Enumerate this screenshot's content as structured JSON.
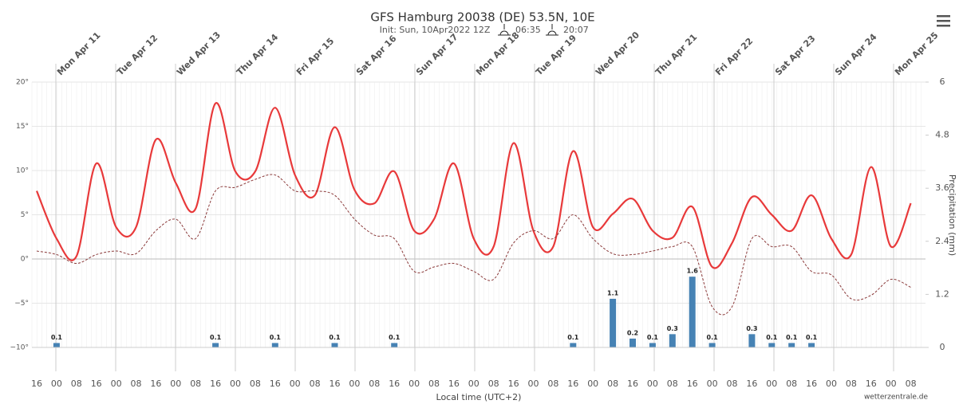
{
  "chart_data": {
    "type": "line",
    "title": "GFS Hamburg 20038 (DE) 53.5N, 10E",
    "subtitle": "Init: Sun, 10Apr2022 12Z",
    "sunrise": "06:35",
    "sunset": "20:07",
    "x_label": "Local time (UTC+2)",
    "y2_label": "Precipitation (mm)",
    "credit": "wetterzentrale.de",
    "day_labels": [
      "Mon Apr 11",
      "Tue Apr 12",
      "Wed Apr 13",
      "Thu Apr 14",
      "Fri Apr 15",
      "Sat Apr 16",
      "Sun Apr 17",
      "Mon Apr 18",
      "Tue Apr 19",
      "Wed Apr 20",
      "Thu Apr 21",
      "Fri Apr 22",
      "Sat Apr 23",
      "Sun Apr 24",
      "Mon Apr 25"
    ],
    "categories": [
      "16",
      "00",
      "08",
      "16",
      "00",
      "08",
      "16",
      "00",
      "08",
      "16",
      "00",
      "08",
      "16",
      "00",
      "08",
      "16",
      "00",
      "08",
      "16",
      "00",
      "08",
      "16",
      "00",
      "08",
      "16",
      "00",
      "08",
      "16",
      "00",
      "08",
      "16",
      "00",
      "08",
      "16",
      "00",
      "08",
      "16",
      "00",
      "08",
      "16",
      "00",
      "08",
      "16",
      "00",
      "08"
    ],
    "ylim": [
      -10,
      20
    ],
    "yticks": [
      {
        "value": -10,
        "label": "−10°"
      },
      {
        "value": -5,
        "label": "−5°"
      },
      {
        "value": 0,
        "label": "0°"
      },
      {
        "value": 5,
        "label": "5°"
      },
      {
        "value": 10,
        "label": "10°"
      },
      {
        "value": 15,
        "label": "15°"
      },
      {
        "value": 20,
        "label": "20°"
      }
    ],
    "y2lim": [
      0,
      6
    ],
    "y2ticks": [
      0,
      1.2,
      2.4,
      3.6,
      4.8,
      6
    ],
    "grid": true,
    "series": [
      {
        "color": "#e8393a",
        "style": "solid",
        "values": [
          7.7,
          2.3,
          0.3,
          10.8,
          3.6,
          3.6,
          13.5,
          8.6,
          5.7,
          17.6,
          9.9,
          9.9,
          17.1,
          9.5,
          7.2,
          14.9,
          7.8,
          6.3,
          9.9,
          3.2,
          4.5,
          10.8,
          2.3,
          1.4,
          13.1,
          3.2,
          1.4,
          12.2,
          3.6,
          5.1,
          6.8,
          3.2,
          2.4,
          5.9,
          -0.9,
          1.8,
          7.0,
          5.0,
          3.2,
          7.2,
          2.3,
          0.5,
          10.4,
          1.4,
          6.3
        ]
      },
      {
        "color": "#8b3a3a",
        "style": "dashed",
        "values": [
          0.9,
          0.5,
          -0.5,
          0.5,
          0.9,
          0.6,
          3.2,
          4.5,
          2.3,
          7.7,
          8.1,
          9.0,
          9.5,
          7.7,
          7.7,
          7.2,
          4.5,
          2.7,
          2.3,
          -1.4,
          -0.9,
          -0.5,
          -1.4,
          -2.3,
          1.8,
          3.2,
          2.3,
          5.0,
          2.3,
          0.6,
          0.5,
          0.9,
          1.4,
          1.4,
          -5.4,
          -5.4,
          2.3,
          1.4,
          1.4,
          -1.4,
          -1.8,
          -4.5,
          -4.1,
          -2.3,
          -3.2
        ]
      },
      {
        "color": "#4682b4",
        "type": "bar",
        "axis": "y2",
        "values": [
          null,
          0.1,
          null,
          null,
          null,
          null,
          null,
          null,
          null,
          0.1,
          null,
          null,
          0.1,
          null,
          null,
          0.1,
          null,
          null,
          0.1,
          null,
          null,
          null,
          null,
          null,
          null,
          null,
          null,
          0.1,
          null,
          1.1,
          0.2,
          0.1,
          0.3,
          1.6,
          0.1,
          null,
          0.3,
          0.1,
          0.1,
          0.1,
          null,
          null,
          null,
          null,
          null
        ]
      }
    ]
  }
}
